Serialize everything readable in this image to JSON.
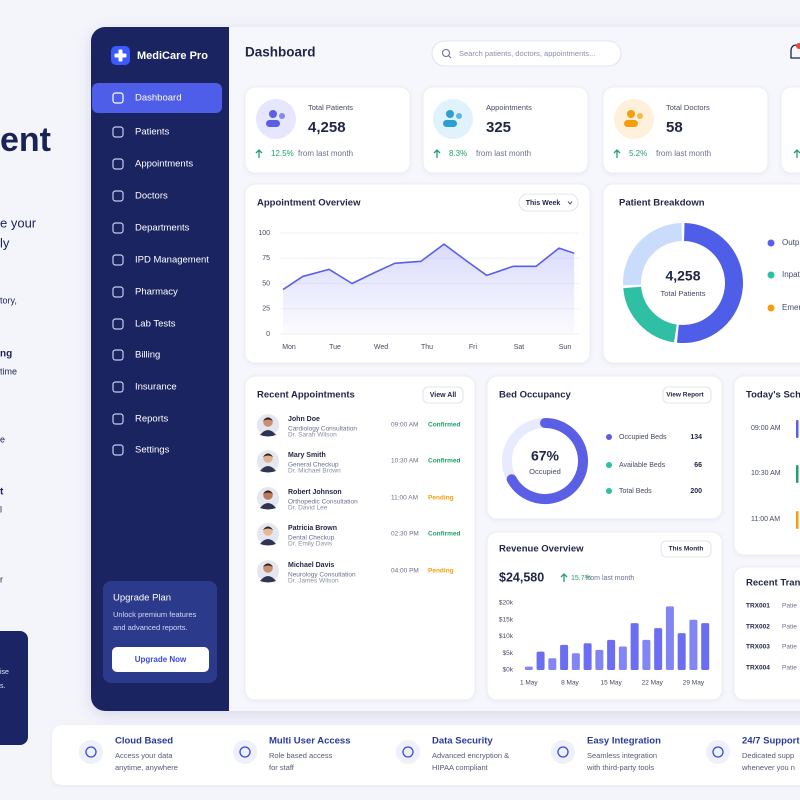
{
  "background_text": [
    "ent",
    "e your",
    "ly",
    "tory,",
    "ng",
    "time",
    "e",
    "t",
    "l",
    "r"
  ],
  "promo_box": [
    "ise",
    "s."
  ],
  "sidebar": {
    "brand": "MediCare Pro",
    "nav": [
      "Dashboard",
      "Patients",
      "Appointments",
      "Doctors",
      "Departments",
      "IPD Management",
      "Pharmacy",
      "Lab Tests",
      "Billing",
      "Insurance",
      "Reports",
      "Settings"
    ],
    "active": 0,
    "upgrade": {
      "title": "Upgrade Plan",
      "text": [
        "Unlock premium features",
        "and advanced reports."
      ],
      "button": "Upgrade Now"
    }
  },
  "header": {
    "title": "Dashboard",
    "search_placeholder": "Search patients, doctors, appointments..."
  },
  "stats": [
    {
      "label": "Total Patients",
      "value": "4,258",
      "change": "12.5%",
      "note": "from last month"
    },
    {
      "label": "Appointments",
      "value": "325",
      "change": "8.3%",
      "note": "from last month"
    },
    {
      "label": "Total Doctors",
      "value": "58",
      "change": "5.2%",
      "note": "from last month"
    }
  ],
  "appointment_overview": {
    "title": "Appointment Overview",
    "period": "This Week",
    "x": [
      -0.13,
      0.3,
      0.87,
      1.37,
      1.87,
      2.3,
      2.87,
      3.37,
      3.87,
      4.3,
      4.87,
      5.37,
      5.87,
      6.2
    ],
    "values": [
      44,
      57,
      64,
      50,
      61,
      70,
      72,
      89,
      72,
      58,
      67,
      67,
      85,
      80
    ],
    "xlim": [
      -0.2,
      6.3
    ],
    "xticks": [
      {
        "value": 0,
        "label": "Mon"
      },
      {
        "value": 1,
        "label": "Tue"
      },
      {
        "value": 2,
        "label": "Wed"
      },
      {
        "value": 3,
        "label": "Thu"
      },
      {
        "value": 4,
        "label": "Fri"
      },
      {
        "value": 5,
        "label": "Sat"
      },
      {
        "value": 6,
        "label": "Sun"
      }
    ],
    "ylim": [
      0,
      100
    ],
    "yticks": [
      0,
      25,
      50,
      75,
      100
    ],
    "color": "#5b5fe6"
  },
  "patient_breakdown": {
    "title": "Patient Breakdown",
    "total": "4,258",
    "total_label": "Total Patients",
    "series": [
      {
        "name": "Outp",
        "value": 52,
        "color": "#4f5ee8",
        "legend_color": "#5b5fe6"
      },
      {
        "name": "Inpat",
        "value": 22,
        "color": "#2ebfa5",
        "legend_color": "#2ebfa5"
      },
      {
        "name": "Emer",
        "value": 26,
        "color": "#c9dcfb",
        "legend_color": "#f59e0b"
      }
    ]
  },
  "recent_appointments": {
    "title": "Recent Appointments",
    "action": "View All",
    "rows": [
      {
        "patient": "John Doe",
        "service": "Cardiology Consultation",
        "doctor": "Dr. Sarah Wilson",
        "time": "09:00 AM",
        "status": "Confirmed",
        "status_color": "#22a06b"
      },
      {
        "patient": "Mary Smith",
        "service": "General Checkup",
        "doctor": "Dr. Michael Brown",
        "time": "10:30 AM",
        "status": "Confirmed",
        "status_color": "#22a06b"
      },
      {
        "patient": "Robert Johnson",
        "service": "Orthopedic Consultation",
        "doctor": "Dr. David Lee",
        "time": "11:00 AM",
        "status": "Pending",
        "status_color": "#f59e0b"
      },
      {
        "patient": "Patricia Brown",
        "service": "Dental Checkup",
        "doctor": "Dr. Emily Davis",
        "time": "02:30 PM",
        "status": "Confirmed",
        "status_color": "#22a06b"
      },
      {
        "patient": "Michael Davis",
        "service": "Neurology Consultation",
        "doctor": "Dr. James Wilson",
        "time": "04:00 PM",
        "status": "Pending",
        "status_color": "#f59e0b"
      }
    ]
  },
  "bed_occupancy": {
    "title": "Bed Occupancy",
    "action": "View Report",
    "occupancy": 67,
    "occupancy_label": "67%",
    "center_label": "Occupied",
    "color": "#5b5fe6",
    "items": [
      {
        "label": "Occupied Beds",
        "value": 134,
        "color": "#5b5fe6"
      },
      {
        "label": "Available Beds",
        "value": 66,
        "color": "#2ebfa5"
      },
      {
        "label": "Total Beds",
        "value": 200,
        "color": "#2ebfa5"
      }
    ]
  },
  "revenue_overview": {
    "title": "Revenue Overview",
    "period": "This Month",
    "total": "$24,580",
    "change": "15.7%",
    "note": "from last month",
    "x": [
      1,
      3,
      5,
      7,
      9,
      11,
      13,
      15,
      17,
      19,
      21,
      23,
      25,
      27,
      29,
      31
    ],
    "values": [
      1000,
      5500,
      3500,
      7500,
      5000,
      8000,
      6000,
      9000,
      7000,
      14000,
      9000,
      12500,
      19000,
      11000,
      15000,
      14000
    ],
    "xlim": [
      -0.5,
      32.5
    ],
    "xticks": [
      {
        "value": 1,
        "label": "1 May"
      },
      {
        "value": 8,
        "label": "8 May"
      },
      {
        "value": 15,
        "label": "15 May"
      },
      {
        "value": 22,
        "label": "22 May"
      },
      {
        "value": 29,
        "label": "29 May"
      }
    ],
    "ylim": [
      0,
      20000
    ],
    "yticks": [
      {
        "value": 0,
        "label": "$0k"
      },
      {
        "value": 5000,
        "label": "$5k"
      },
      {
        "value": 10000,
        "label": "$10k"
      },
      {
        "value": 15000,
        "label": "$15k"
      },
      {
        "value": 20000,
        "label": "$20k"
      }
    ],
    "color": "#6366f1"
  },
  "todays_schedule": {
    "title": "Today's Sche",
    "times": [
      "09:00 AM",
      "10:30 AM",
      "11:00 AM"
    ]
  },
  "recent_transactions": {
    "title": "Recent Trans",
    "rows": [
      {
        "id": "TRX001",
        "patient": "Patie"
      },
      {
        "id": "TRX002",
        "patient": "Patie"
      },
      {
        "id": "TRX003",
        "patient": "Patie"
      },
      {
        "id": "TRX004",
        "patient": "Patie"
      }
    ]
  },
  "features": [
    {
      "title": "Cloud Based",
      "desc": [
        "Access your data",
        "anytime, anywhere"
      ]
    },
    {
      "title": "Multi User Access",
      "desc": [
        "Role based access",
        "for staff"
      ]
    },
    {
      "title": "Data Security",
      "desc": [
        "Advanced encryption &",
        "HIPAA compliant"
      ]
    },
    {
      "title": "Easy Integration",
      "desc": [
        "Seamless integration",
        "with third-party tools"
      ]
    },
    {
      "title": "24/7 Support",
      "desc": [
        "Dedicated supp",
        "whenever you n"
      ]
    }
  ]
}
